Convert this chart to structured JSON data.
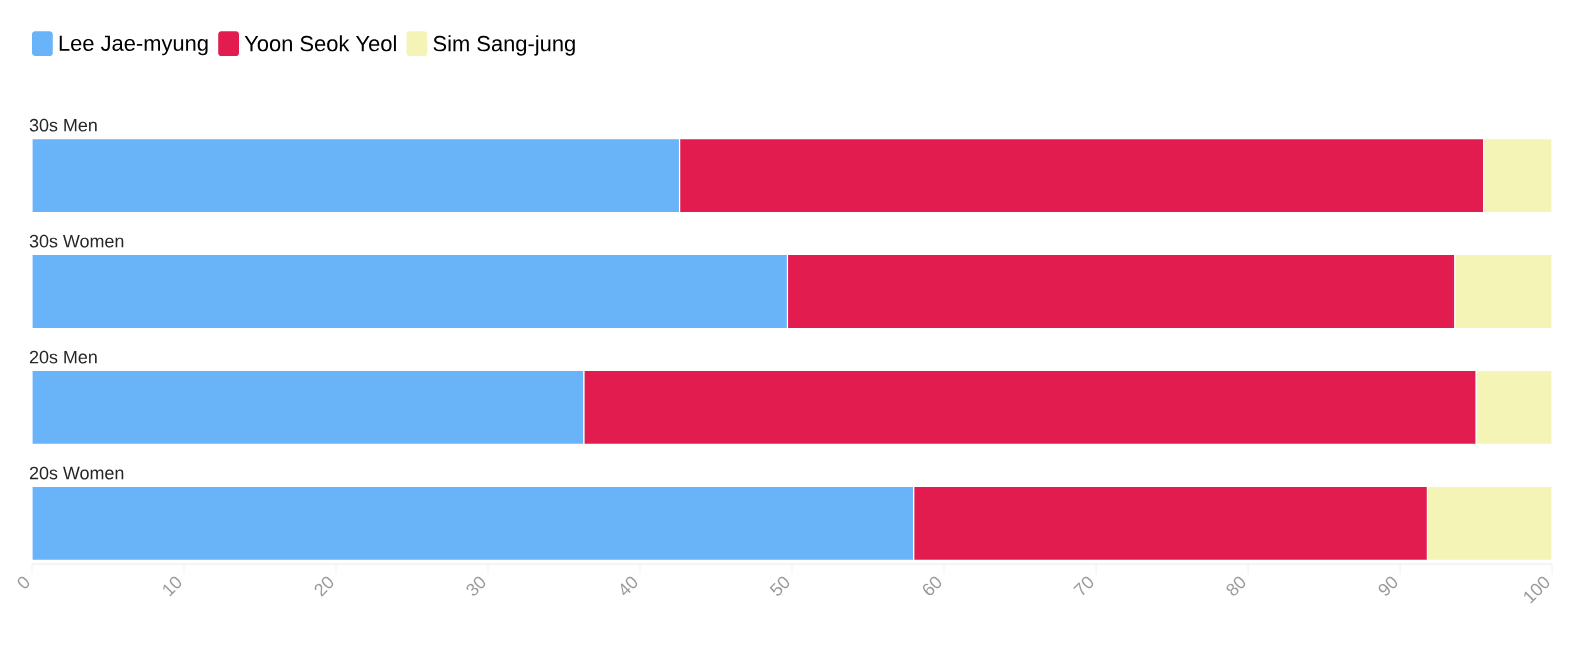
{
  "chart_data": {
    "type": "bar",
    "orientation": "horizontal",
    "stacked": true,
    "categories": [
      "30s Men",
      "30s Women",
      "20s Men",
      "20s Women"
    ],
    "series": [
      {
        "name": "Lee Jae-myung",
        "color": "#69b3f9",
        "values": [
          42.6,
          49.7,
          36.3,
          58.0
        ]
      },
      {
        "name": "Yoon Seok Yeol",
        "color": "#e31c4f",
        "values": [
          52.9,
          43.9,
          58.7,
          33.8
        ]
      },
      {
        "name": "Sim Sang-jung",
        "color": "#f3f4b6",
        "values": [
          4.5,
          6.4,
          5.0,
          8.2
        ]
      }
    ],
    "xlim": [
      0,
      100
    ],
    "xticks": [
      0,
      10,
      20,
      30,
      40,
      50,
      60,
      70,
      80,
      90,
      100
    ],
    "legend": "top left",
    "grid": false
  }
}
